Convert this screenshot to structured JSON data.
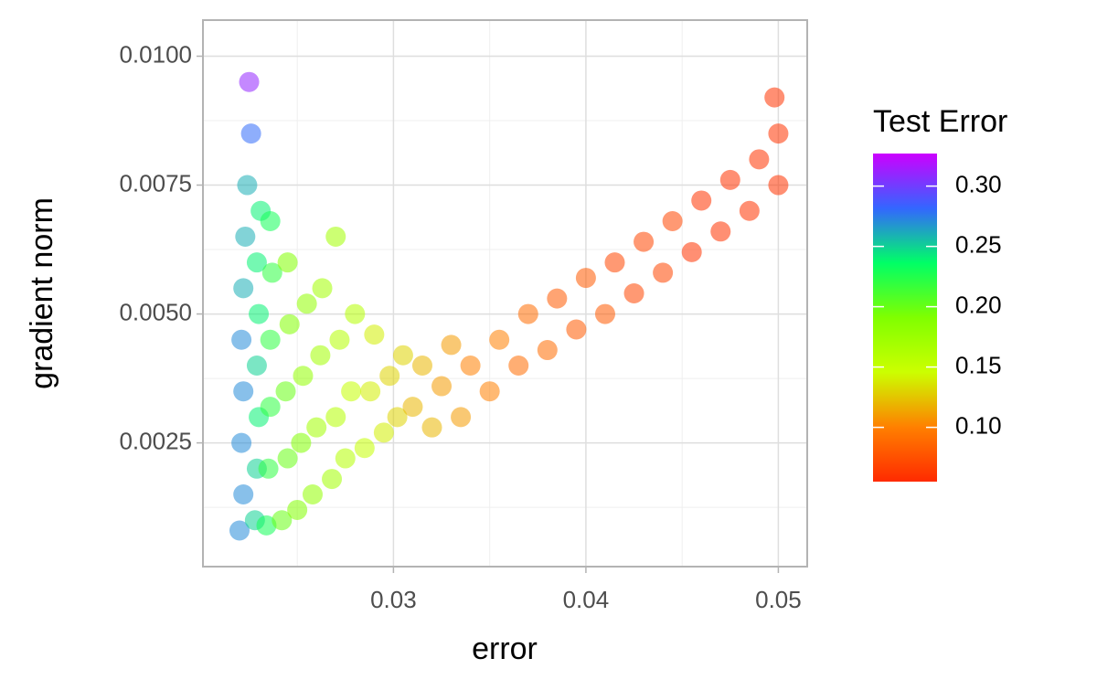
{
  "chart_data": {
    "type": "scatter",
    "x_label": "error",
    "y_label": "gradient norm",
    "legend_title": "Test Error",
    "xlim": [
      0.0201,
      0.0515
    ],
    "ylim": [
      0.0001,
      0.0107
    ],
    "xticks": [
      0.03,
      0.04,
      0.05
    ],
    "yticks": [
      {
        "value": 0.0025,
        "label": "0.0025"
      },
      {
        "value": 0.005,
        "label": "0.0050"
      },
      {
        "value": 0.0075,
        "label": "0.0075"
      },
      {
        "value": 0.01,
        "label": "0.0100"
      }
    ],
    "x_minor_ticks": [
      0.025,
      0.035,
      0.045
    ],
    "y_minor_ticks": [
      0.00125,
      0.00375,
      0.00625,
      0.00875
    ],
    "grid": true,
    "colorbar_lim": [
      0.055,
      0.327
    ],
    "colorbar_ticks": [
      {
        "value": 0.1,
        "label": "0.10"
      },
      0.15,
      {
        "value": 0.2,
        "label": "0.20"
      },
      0.25,
      {
        "value": 0.3,
        "label": "0.30"
      }
    ],
    "colorscale": [
      "#ff2a00",
      "#ff8000",
      "#ccff00",
      "#80ff00",
      "#00ff66",
      "#3366ff",
      "#cc00ff"
    ],
    "x": [
      0.022,
      0.0222,
      0.0221,
      0.0222,
      0.0221,
      0.0222,
      0.0223,
      0.0224,
      0.0226,
      0.0225,
      0.0228,
      0.0229,
      0.023,
      0.0229,
      0.023,
      0.0229,
      0.0231,
      0.0234,
      0.0235,
      0.0236,
      0.0236,
      0.0237,
      0.0236,
      0.0242,
      0.0245,
      0.0244,
      0.0246,
      0.0245,
      0.025,
      0.0252,
      0.0253,
      0.0255,
      0.0258,
      0.026,
      0.0262,
      0.0263,
      0.0268,
      0.027,
      0.0272,
      0.0275,
      0.0278,
      0.028,
      0.027,
      0.0285,
      0.0288,
      0.029,
      0.0295,
      0.0298,
      0.0302,
      0.0305,
      0.031,
      0.0315,
      0.032,
      0.0325,
      0.033,
      0.0335,
      0.034,
      0.035,
      0.0355,
      0.0365,
      0.037,
      0.038,
      0.0385,
      0.0395,
      0.04,
      0.041,
      0.0415,
      0.0425,
      0.043,
      0.044,
      0.0445,
      0.0455,
      0.046,
      0.047,
      0.0475,
      0.0485,
      0.049,
      0.05,
      0.05,
      0.0498
    ],
    "values": [
      0.0008,
      0.0015,
      0.0025,
      0.0035,
      0.0045,
      0.0055,
      0.0065,
      0.0075,
      0.0085,
      0.0095,
      0.001,
      0.002,
      0.003,
      0.004,
      0.005,
      0.006,
      0.007,
      0.0009,
      0.002,
      0.0032,
      0.0045,
      0.0058,
      0.0068,
      0.001,
      0.0022,
      0.0035,
      0.0048,
      0.006,
      0.0012,
      0.0025,
      0.0038,
      0.0052,
      0.0015,
      0.0028,
      0.0042,
      0.0055,
      0.0018,
      0.003,
      0.0045,
      0.0022,
      0.0035,
      0.005,
      0.0065,
      0.0024,
      0.0035,
      0.0046,
      0.0027,
      0.0038,
      0.003,
      0.0042,
      0.0032,
      0.004,
      0.0028,
      0.0036,
      0.0044,
      0.003,
      0.004,
      0.0035,
      0.0045,
      0.004,
      0.005,
      0.0043,
      0.0053,
      0.0047,
      0.0057,
      0.005,
      0.006,
      0.0054,
      0.0064,
      0.0058,
      0.0068,
      0.0062,
      0.0072,
      0.0066,
      0.0076,
      0.007,
      0.008,
      0.0075,
      0.0085,
      0.0092
    ],
    "color_values": [
      0.27,
      0.27,
      0.27,
      0.27,
      0.27,
      0.26,
      0.26,
      0.26,
      0.28,
      0.31,
      0.25,
      0.25,
      0.24,
      0.25,
      0.24,
      0.24,
      0.24,
      0.23,
      0.22,
      0.22,
      0.22,
      0.22,
      0.23,
      0.2,
      0.2,
      0.2,
      0.19,
      0.19,
      0.19,
      0.19,
      0.18,
      0.18,
      0.18,
      0.17,
      0.17,
      0.17,
      0.17,
      0.16,
      0.16,
      0.16,
      0.15,
      0.16,
      0.17,
      0.15,
      0.14,
      0.14,
      0.14,
      0.13,
      0.13,
      0.13,
      0.12,
      0.12,
      0.12,
      0.11,
      0.11,
      0.11,
      0.1,
      0.1,
      0.1,
      0.09,
      0.09,
      0.09,
      0.08,
      0.08,
      0.08,
      0.08,
      0.07,
      0.07,
      0.07,
      0.07,
      0.07,
      0.06,
      0.06,
      0.06,
      0.06,
      0.06,
      0.06,
      0.06,
      0.06,
      0.06
    ]
  }
}
